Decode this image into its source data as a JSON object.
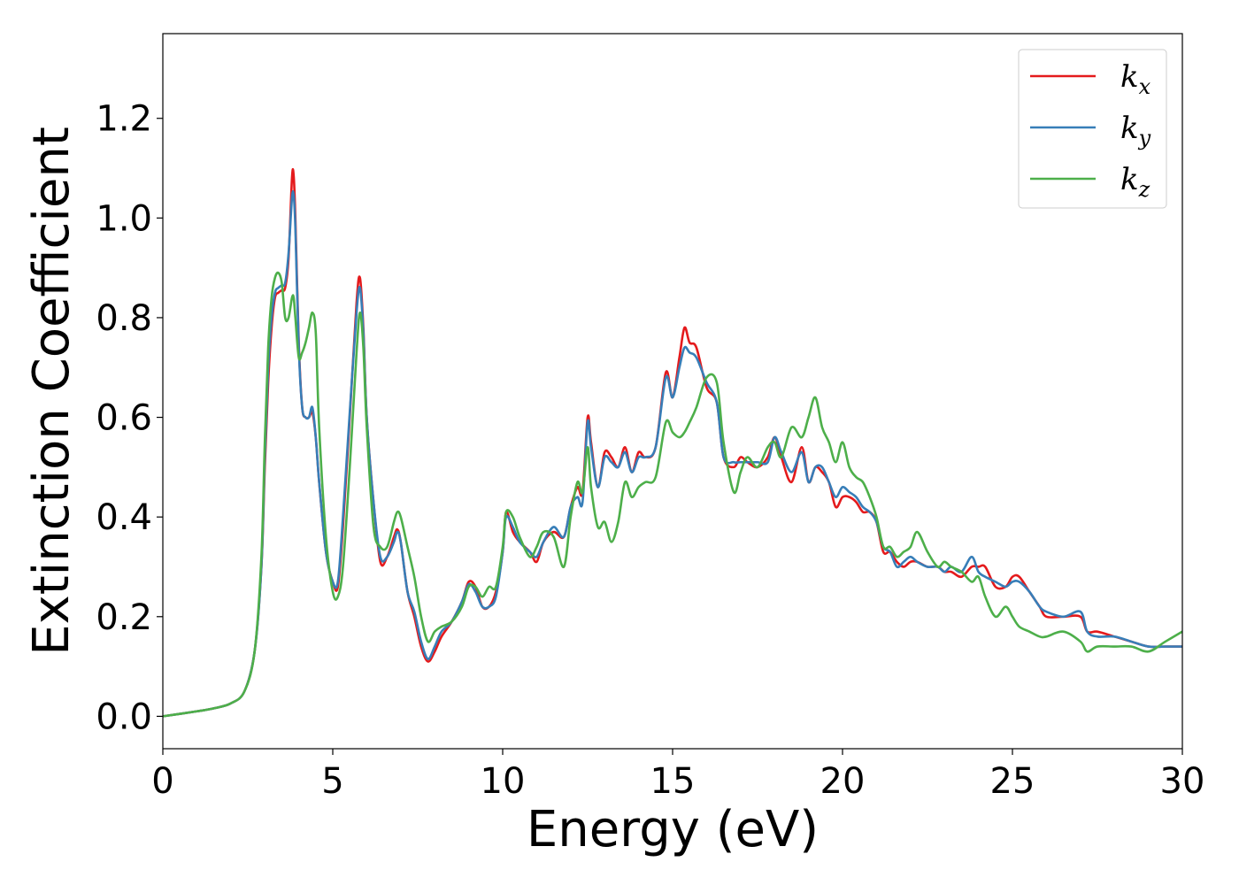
{
  "chart_data": {
    "type": "line",
    "title": "",
    "xlabel": "Energy (eV)",
    "ylabel": "Extinction Coefficient",
    "xlim": [
      0,
      30
    ],
    "ylim": [
      -0.065,
      1.37
    ],
    "xticks": [
      "0",
      "5",
      "10",
      "15",
      "20",
      "25",
      "30"
    ],
    "yticks": [
      "0.0",
      "0.2",
      "0.4",
      "0.6",
      "0.8",
      "1.0",
      "1.2"
    ],
    "grid": false,
    "legend_position": "top-right",
    "series": [
      {
        "name": "k_x",
        "label_base": "k",
        "label_sub": "x",
        "color": "#e41a1c",
        "x": [
          0,
          1,
          1.5,
          2,
          2.4,
          2.7,
          2.9,
          3.0,
          3.1,
          3.2,
          3.3,
          3.4,
          3.5,
          3.6,
          3.7,
          3.8,
          3.85,
          3.9,
          4.0,
          4.1,
          4.2,
          4.3,
          4.4,
          4.5,
          4.6,
          4.8,
          5.0,
          5.15,
          5.3,
          5.5,
          5.7,
          5.8,
          5.9,
          6.0,
          6.2,
          6.4,
          6.6,
          6.8,
          6.9,
          7.0,
          7.2,
          7.4,
          7.6,
          7.8,
          8.0,
          8.2,
          8.5,
          8.8,
          9.0,
          9.2,
          9.4,
          9.6,
          9.8,
          10.0,
          10.1,
          10.3,
          10.5,
          10.8,
          11.0,
          11.2,
          11.5,
          11.8,
          12.0,
          12.2,
          12.35,
          12.5,
          12.6,
          12.8,
          13.0,
          13.2,
          13.4,
          13.6,
          13.8,
          14.0,
          14.2,
          14.5,
          14.8,
          15.0,
          15.2,
          15.35,
          15.5,
          15.7,
          16.0,
          16.3,
          16.5,
          16.8,
          17.0,
          17.2,
          17.5,
          17.8,
          18.0,
          18.2,
          18.5,
          18.8,
          19.0,
          19.2,
          19.4,
          19.6,
          19.8,
          20.0,
          20.2,
          20.4,
          20.6,
          20.8,
          21.0,
          21.2,
          21.4,
          21.6,
          21.8,
          22.0,
          22.2,
          22.5,
          22.8,
          23.0,
          23.2,
          23.5,
          23.8,
          24.0,
          24.2,
          24.5,
          24.8,
          25.0,
          25.2,
          25.5,
          25.8,
          26.0,
          26.5,
          27.0,
          27.2,
          27.5,
          28.0,
          28.5,
          29.0,
          29.5,
          30.0
        ],
        "y": [
          0,
          0.01,
          0.016,
          0.026,
          0.05,
          0.13,
          0.3,
          0.5,
          0.67,
          0.78,
          0.84,
          0.85,
          0.855,
          0.86,
          0.92,
          1.08,
          1.085,
          1.0,
          0.75,
          0.62,
          0.6,
          0.6,
          0.61,
          0.56,
          0.47,
          0.33,
          0.27,
          0.26,
          0.38,
          0.6,
          0.83,
          0.88,
          0.78,
          0.6,
          0.43,
          0.31,
          0.32,
          0.36,
          0.375,
          0.35,
          0.25,
          0.2,
          0.14,
          0.11,
          0.13,
          0.16,
          0.19,
          0.23,
          0.27,
          0.26,
          0.22,
          0.22,
          0.25,
          0.33,
          0.41,
          0.37,
          0.35,
          0.33,
          0.31,
          0.35,
          0.37,
          0.36,
          0.42,
          0.46,
          0.45,
          0.6,
          0.55,
          0.46,
          0.53,
          0.52,
          0.5,
          0.54,
          0.49,
          0.53,
          0.52,
          0.54,
          0.69,
          0.64,
          0.72,
          0.78,
          0.75,
          0.74,
          0.66,
          0.63,
          0.52,
          0.5,
          0.52,
          0.51,
          0.5,
          0.52,
          0.56,
          0.52,
          0.47,
          0.54,
          0.47,
          0.5,
          0.49,
          0.47,
          0.42,
          0.44,
          0.44,
          0.43,
          0.41,
          0.41,
          0.39,
          0.33,
          0.33,
          0.31,
          0.3,
          0.31,
          0.31,
          0.3,
          0.3,
          0.29,
          0.29,
          0.28,
          0.3,
          0.3,
          0.3,
          0.26,
          0.26,
          0.28,
          0.28,
          0.25,
          0.22,
          0.2,
          0.2,
          0.2,
          0.17,
          0.17,
          0.16,
          0.15,
          0.14,
          0.14,
          0.14
        ]
      },
      {
        "name": "k_y",
        "label_base": "k",
        "label_sub": "y",
        "color": "#377eb8",
        "x": [
          0,
          1,
          1.5,
          2,
          2.4,
          2.7,
          2.9,
          3.0,
          3.1,
          3.2,
          3.3,
          3.4,
          3.5,
          3.6,
          3.7,
          3.8,
          3.85,
          3.9,
          4.0,
          4.1,
          4.2,
          4.3,
          4.4,
          4.5,
          4.6,
          4.8,
          5.0,
          5.15,
          5.3,
          5.5,
          5.7,
          5.8,
          5.9,
          6.0,
          6.2,
          6.4,
          6.6,
          6.8,
          6.9,
          7.0,
          7.2,
          7.4,
          7.6,
          7.8,
          8.0,
          8.2,
          8.5,
          8.8,
          9.0,
          9.2,
          9.4,
          9.6,
          9.8,
          10.0,
          10.1,
          10.3,
          10.5,
          10.8,
          11.0,
          11.2,
          11.5,
          11.8,
          12.0,
          12.2,
          12.35,
          12.5,
          12.6,
          12.8,
          13.0,
          13.2,
          13.4,
          13.6,
          13.8,
          14.0,
          14.2,
          14.5,
          14.8,
          15.0,
          15.2,
          15.35,
          15.5,
          15.7,
          16.0,
          16.3,
          16.5,
          16.8,
          17.0,
          17.2,
          17.5,
          17.8,
          18.0,
          18.2,
          18.5,
          18.8,
          19.0,
          19.2,
          19.4,
          19.6,
          19.8,
          20.0,
          20.2,
          20.4,
          20.6,
          20.8,
          21.0,
          21.2,
          21.4,
          21.6,
          21.8,
          22.0,
          22.2,
          22.5,
          22.8,
          23.0,
          23.2,
          23.5,
          23.8,
          24.0,
          24.2,
          24.5,
          24.8,
          25.0,
          25.2,
          25.5,
          25.8,
          26.0,
          26.5,
          27.0,
          27.2,
          27.5,
          28.0,
          28.5,
          29.0,
          29.5,
          30.0
        ],
        "y": [
          0,
          0.01,
          0.016,
          0.026,
          0.05,
          0.13,
          0.3,
          0.52,
          0.7,
          0.8,
          0.85,
          0.86,
          0.865,
          0.87,
          0.93,
          1.04,
          1.045,
          0.98,
          0.74,
          0.62,
          0.6,
          0.6,
          0.62,
          0.56,
          0.47,
          0.33,
          0.27,
          0.27,
          0.4,
          0.61,
          0.81,
          0.86,
          0.77,
          0.6,
          0.43,
          0.32,
          0.32,
          0.35,
          0.37,
          0.35,
          0.25,
          0.21,
          0.15,
          0.115,
          0.14,
          0.17,
          0.19,
          0.23,
          0.265,
          0.25,
          0.22,
          0.22,
          0.24,
          0.33,
          0.4,
          0.38,
          0.35,
          0.33,
          0.32,
          0.35,
          0.38,
          0.36,
          0.42,
          0.44,
          0.43,
          0.59,
          0.54,
          0.46,
          0.52,
          0.51,
          0.5,
          0.53,
          0.49,
          0.52,
          0.52,
          0.54,
          0.68,
          0.64,
          0.7,
          0.74,
          0.73,
          0.72,
          0.67,
          0.63,
          0.52,
          0.51,
          0.51,
          0.51,
          0.51,
          0.51,
          0.56,
          0.53,
          0.49,
          0.53,
          0.47,
          0.5,
          0.5,
          0.47,
          0.44,
          0.46,
          0.45,
          0.44,
          0.42,
          0.41,
          0.39,
          0.34,
          0.33,
          0.3,
          0.31,
          0.32,
          0.31,
          0.3,
          0.3,
          0.29,
          0.3,
          0.29,
          0.32,
          0.29,
          0.28,
          0.27,
          0.26,
          0.27,
          0.27,
          0.25,
          0.22,
          0.21,
          0.2,
          0.21,
          0.17,
          0.16,
          0.16,
          0.15,
          0.14,
          0.14,
          0.14
        ]
      },
      {
        "name": "k_z",
        "label_base": "k",
        "label_sub": "z",
        "color": "#4daf4a",
        "x": [
          0,
          1,
          1.5,
          2,
          2.4,
          2.7,
          2.9,
          3.0,
          3.1,
          3.2,
          3.3,
          3.4,
          3.5,
          3.6,
          3.7,
          3.8,
          3.85,
          3.9,
          4.0,
          4.1,
          4.2,
          4.3,
          4.4,
          4.5,
          4.6,
          4.8,
          5.0,
          5.15,
          5.3,
          5.5,
          5.7,
          5.8,
          5.9,
          6.0,
          6.2,
          6.4,
          6.6,
          6.8,
          6.9,
          7.0,
          7.2,
          7.4,
          7.6,
          7.8,
          8.0,
          8.2,
          8.5,
          8.8,
          9.0,
          9.2,
          9.4,
          9.6,
          9.8,
          10.0,
          10.1,
          10.3,
          10.5,
          10.8,
          11.0,
          11.2,
          11.5,
          11.8,
          12.0,
          12.2,
          12.35,
          12.5,
          12.6,
          12.8,
          13.0,
          13.2,
          13.4,
          13.6,
          13.8,
          14.0,
          14.2,
          14.5,
          14.8,
          15.0,
          15.2,
          15.35,
          15.5,
          15.7,
          16.0,
          16.3,
          16.5,
          16.8,
          17.0,
          17.2,
          17.5,
          17.8,
          18.0,
          18.2,
          18.5,
          18.8,
          19.0,
          19.2,
          19.4,
          19.6,
          19.8,
          20.0,
          20.2,
          20.4,
          20.6,
          20.8,
          21.0,
          21.2,
          21.4,
          21.6,
          21.8,
          22.0,
          22.2,
          22.5,
          22.8,
          23.0,
          23.2,
          23.5,
          23.8,
          24.0,
          24.2,
          24.5,
          24.8,
          25.0,
          25.2,
          25.5,
          25.8,
          26.0,
          26.5,
          27.0,
          27.2,
          27.5,
          28.0,
          28.5,
          29.0,
          29.5,
          30.0
        ],
        "y": [
          0,
          0.01,
          0.016,
          0.026,
          0.05,
          0.13,
          0.32,
          0.55,
          0.74,
          0.84,
          0.88,
          0.89,
          0.87,
          0.8,
          0.8,
          0.84,
          0.84,
          0.8,
          0.72,
          0.73,
          0.75,
          0.78,
          0.81,
          0.77,
          0.58,
          0.36,
          0.25,
          0.24,
          0.3,
          0.5,
          0.73,
          0.81,
          0.74,
          0.58,
          0.38,
          0.34,
          0.34,
          0.39,
          0.41,
          0.4,
          0.34,
          0.28,
          0.2,
          0.15,
          0.17,
          0.18,
          0.19,
          0.22,
          0.26,
          0.26,
          0.24,
          0.26,
          0.26,
          0.34,
          0.41,
          0.4,
          0.36,
          0.32,
          0.34,
          0.37,
          0.36,
          0.3,
          0.4,
          0.47,
          0.45,
          0.54,
          0.46,
          0.38,
          0.39,
          0.35,
          0.39,
          0.47,
          0.44,
          0.46,
          0.47,
          0.48,
          0.59,
          0.57,
          0.56,
          0.57,
          0.59,
          0.62,
          0.68,
          0.67,
          0.55,
          0.45,
          0.49,
          0.52,
          0.5,
          0.54,
          0.55,
          0.52,
          0.58,
          0.56,
          0.6,
          0.64,
          0.58,
          0.55,
          0.51,
          0.55,
          0.5,
          0.48,
          0.47,
          0.44,
          0.4,
          0.34,
          0.34,
          0.32,
          0.33,
          0.34,
          0.37,
          0.33,
          0.3,
          0.31,
          0.3,
          0.29,
          0.27,
          0.28,
          0.24,
          0.2,
          0.22,
          0.2,
          0.18,
          0.17,
          0.16,
          0.16,
          0.17,
          0.15,
          0.13,
          0.14,
          0.14,
          0.14,
          0.13,
          0.15,
          0.17
        ]
      }
    ]
  }
}
